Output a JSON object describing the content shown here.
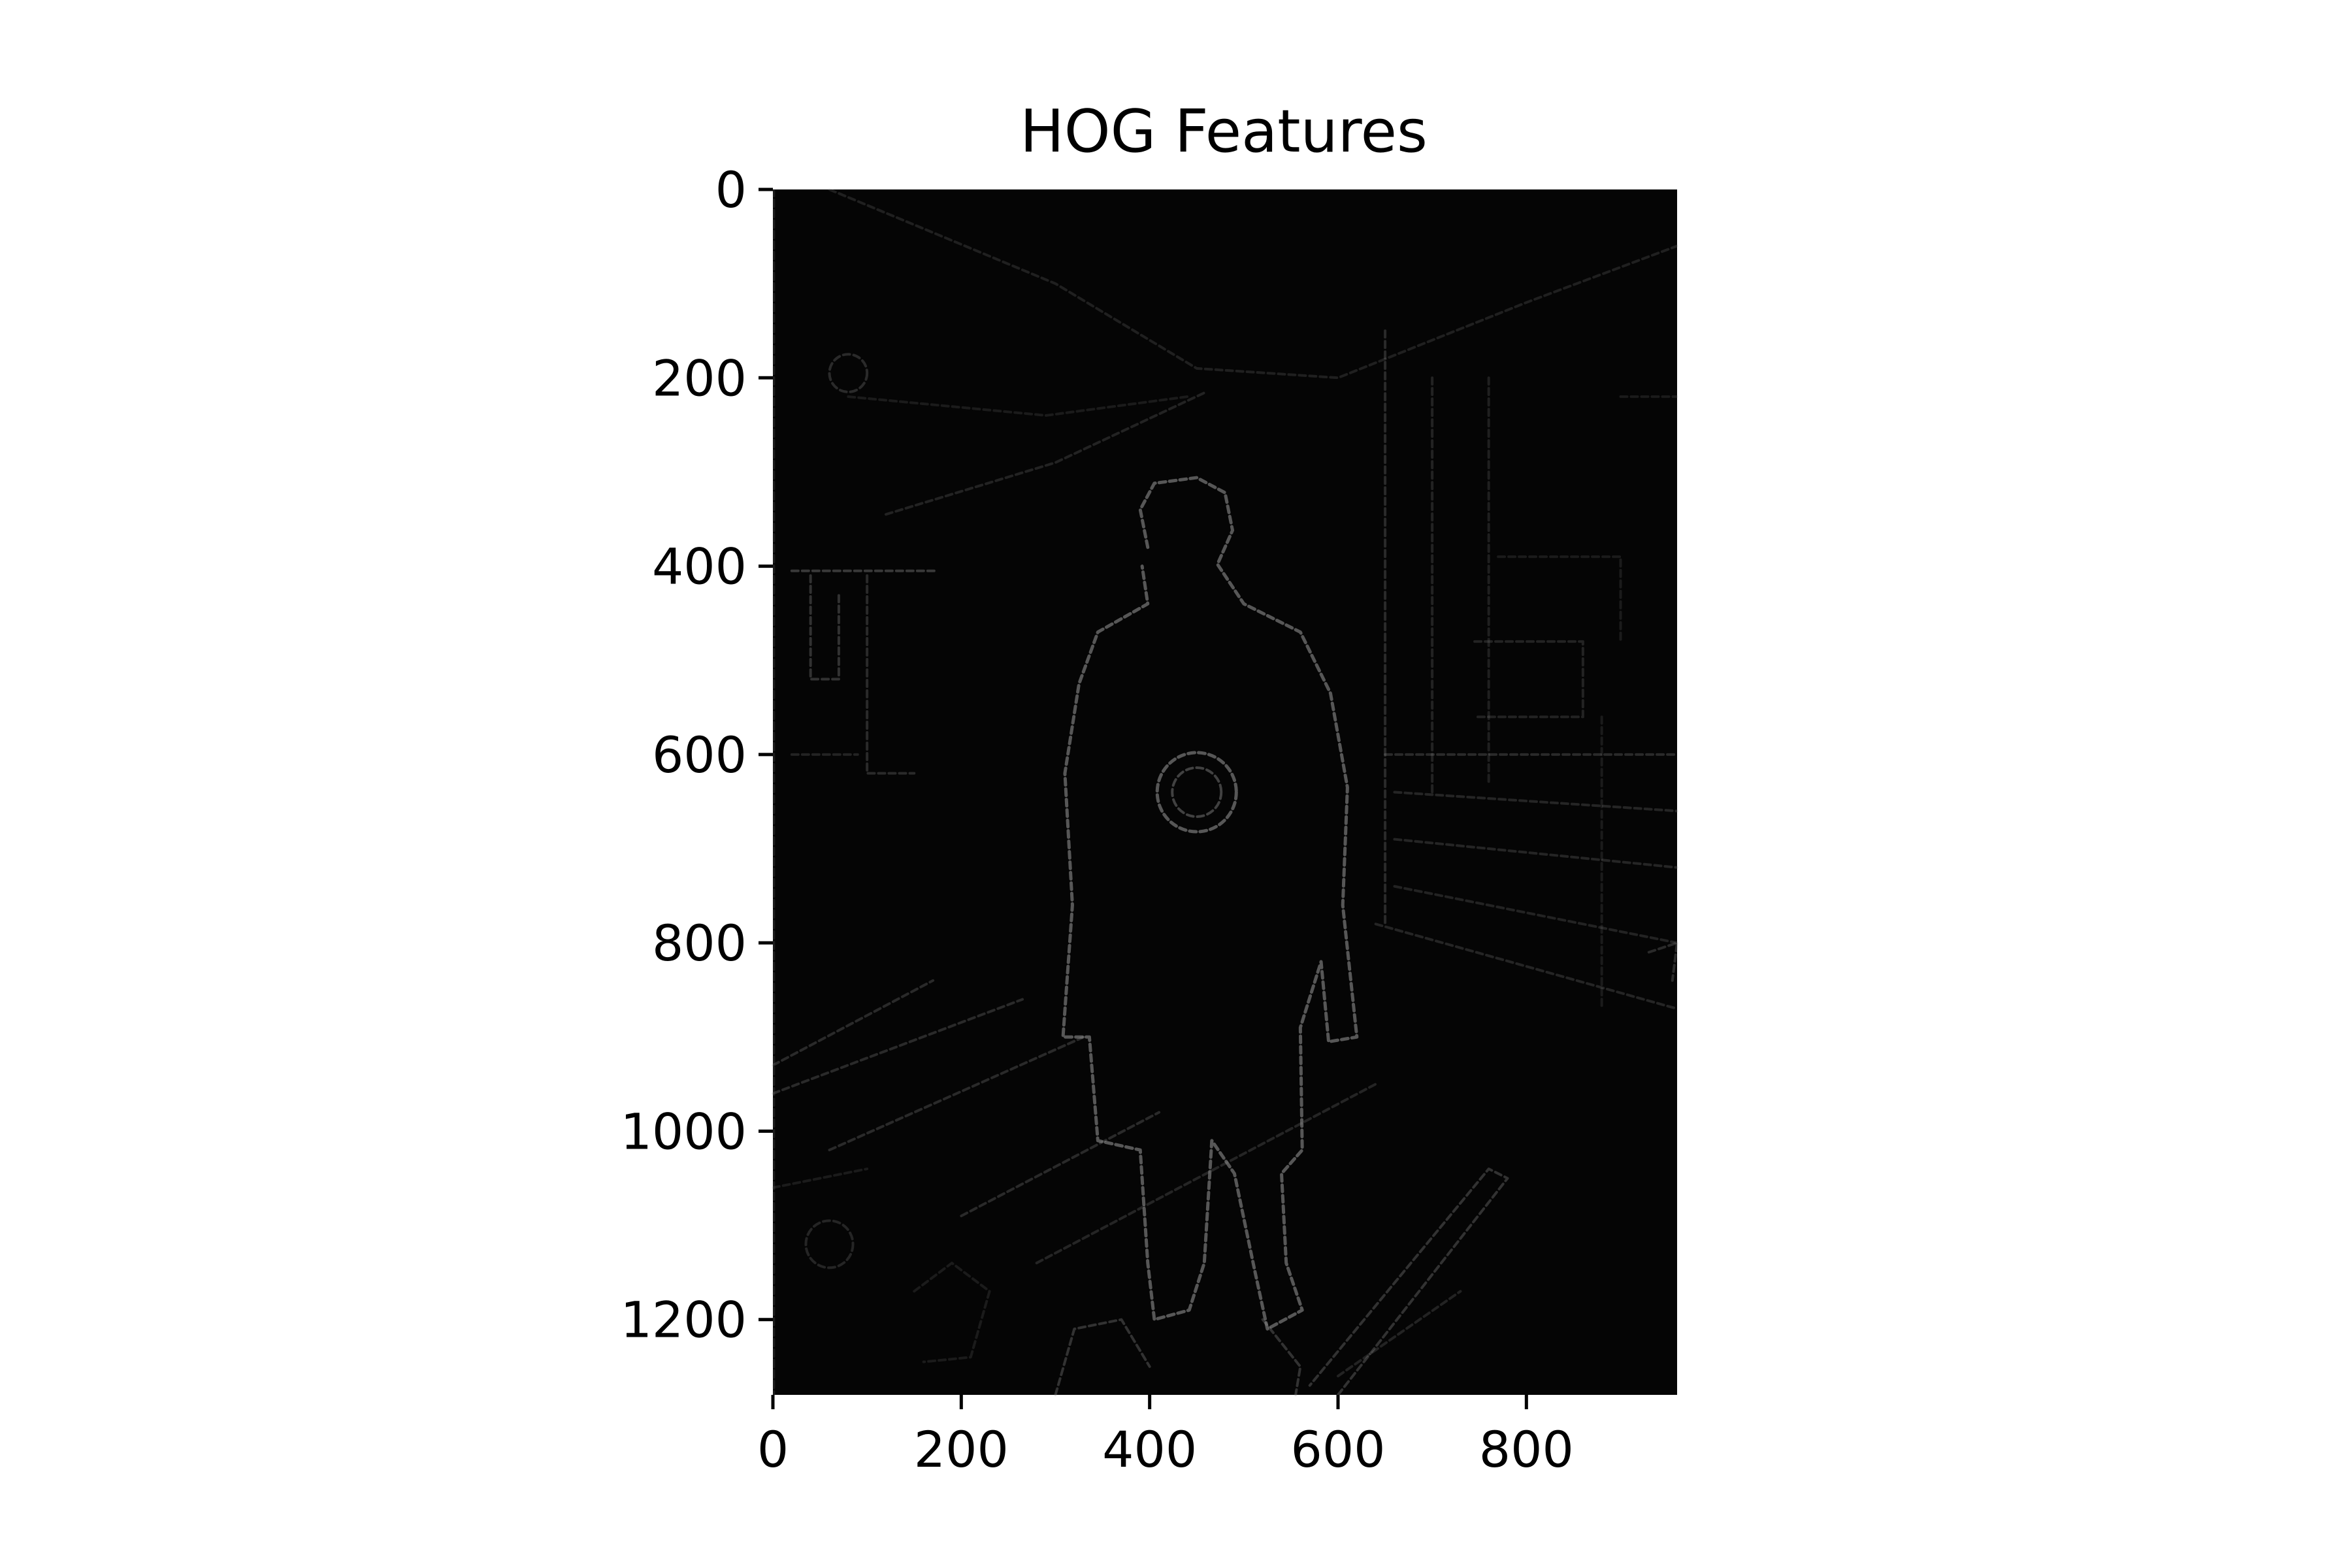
{
  "chart_data": {
    "type": "heatmap",
    "title": "HOG Features",
    "xlabel": "",
    "ylabel": "",
    "xlim": [
      0,
      960
    ],
    "ylim": [
      1280,
      0
    ],
    "x_ticks": [
      0,
      200,
      400,
      600,
      800
    ],
    "y_ticks": [
      0,
      200,
      400,
      600,
      800,
      1000,
      1200
    ],
    "colormap": "gray",
    "grid": false,
    "legend": "none",
    "background_color": "#050505",
    "edge_color": "#9a9a9a"
  }
}
